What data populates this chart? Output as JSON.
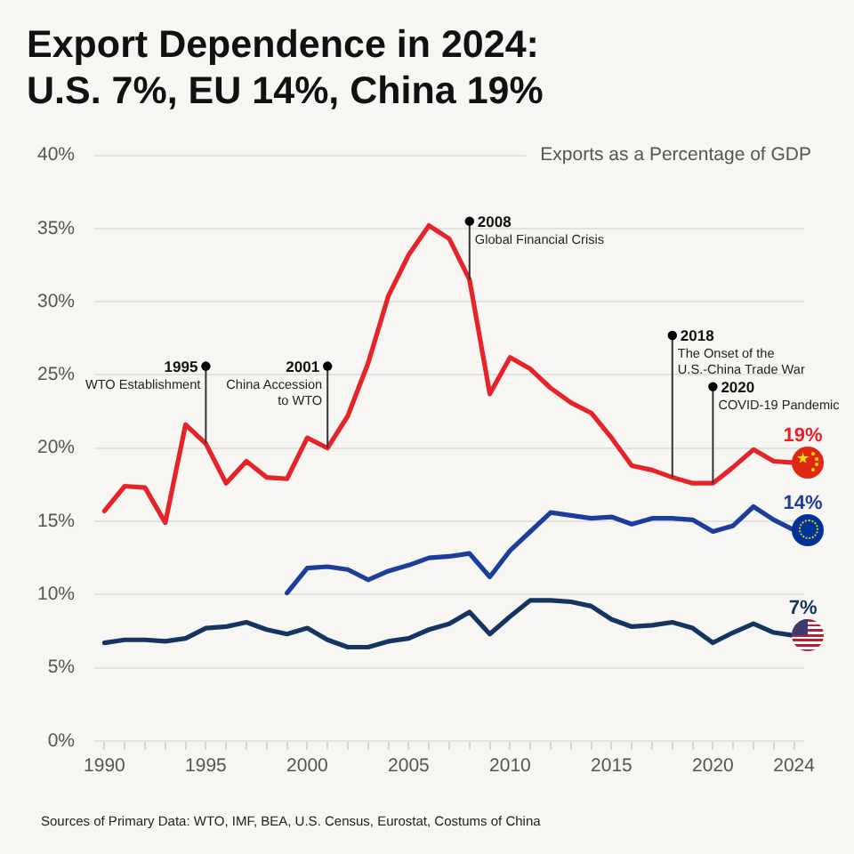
{
  "chart_data": {
    "type": "line",
    "title": "Export Dependence in 2024: U.S. 7%, EU 14%, China 19%",
    "ylabel": "Exports as a Percentage of GDP",
    "x": [
      1990,
      1991,
      1992,
      1993,
      1994,
      1995,
      1996,
      1997,
      1998,
      1999,
      2000,
      2001,
      2002,
      2003,
      2004,
      2005,
      2006,
      2007,
      2008,
      2009,
      2010,
      2011,
      2012,
      2013,
      2014,
      2015,
      2016,
      2017,
      2018,
      2019,
      2020,
      2021,
      2022,
      2023,
      2024
    ],
    "series": [
      {
        "color": "#e52329",
        "values": [
          15.7,
          17.4,
          17.3,
          14.9,
          21.6,
          20.3,
          17.6,
          19.1,
          18.0,
          17.9,
          20.7,
          20.0,
          22.2,
          25.8,
          30.4,
          33.2,
          35.2,
          34.3,
          31.5,
          23.7,
          26.2,
          25.4,
          24.1,
          23.1,
          22.4,
          20.7,
          18.8,
          18.5,
          18.0,
          17.6,
          17.6,
          18.7,
          19.9,
          19.1,
          19.0
        ],
        "value_labels": [
          null,
          null,
          null,
          null,
          null,
          null,
          null,
          null,
          null,
          null,
          null,
          null,
          null,
          null,
          null,
          null,
          null,
          null,
          null,
          null,
          null,
          null,
          null,
          null,
          null,
          null,
          null,
          null,
          null,
          null,
          null,
          null,
          null,
          null,
          "19%"
        ]
      },
      {
        "color": "#1c3d9c",
        "values": [
          null,
          null,
          null,
          null,
          null,
          null,
          null,
          null,
          null,
          10.1,
          11.8,
          11.9,
          11.7,
          11.0,
          11.6,
          12.0,
          12.5,
          12.6,
          12.8,
          11.2,
          13.0,
          14.3,
          15.6,
          15.4,
          15.2,
          15.3,
          14.8,
          15.2,
          15.2,
          15.1,
          14.3,
          14.7,
          16.0,
          15.1,
          14.4
        ],
        "value_labels": [
          null,
          null,
          null,
          null,
          null,
          null,
          null,
          null,
          null,
          null,
          null,
          null,
          null,
          null,
          null,
          null,
          null,
          null,
          null,
          null,
          null,
          null,
          null,
          null,
          null,
          null,
          null,
          null,
          null,
          null,
          null,
          null,
          null,
          null,
          "14%"
        ]
      },
      {
        "color": "#143462",
        "values": [
          6.7,
          6.9,
          6.9,
          6.8,
          7.0,
          7.7,
          7.8,
          8.1,
          7.6,
          7.3,
          7.7,
          6.9,
          6.4,
          6.4,
          6.8,
          7.0,
          7.6,
          8.0,
          8.8,
          7.3,
          8.5,
          9.6,
          9.6,
          9.5,
          9.2,
          8.3,
          7.8,
          7.9,
          8.1,
          7.7,
          6.7,
          7.4,
          8.0,
          7.4,
          7.2
        ],
        "value_labels": [
          null,
          null,
          null,
          null,
          null,
          null,
          null,
          null,
          null,
          null,
          null,
          null,
          null,
          null,
          null,
          null,
          null,
          null,
          null,
          null,
          null,
          null,
          null,
          null,
          null,
          null,
          null,
          null,
          null,
          null,
          null,
          null,
          null,
          null,
          "7%"
        ]
      }
    ],
    "xlim": [
      1989.5,
      2024.5
    ],
    "xticks": [
      1990,
      {
        "value": 1991,
        "label": null
      },
      {
        "value": 1992,
        "label": null
      },
      {
        "value": 1993,
        "label": null
      },
      {
        "value": 1994,
        "label": null
      },
      1995,
      {
        "value": 1996,
        "label": null
      },
      {
        "value": 1997,
        "label": null
      },
      {
        "value": 1998,
        "label": null
      },
      {
        "value": 1999,
        "label": null
      },
      2000,
      {
        "value": 2001,
        "label": null
      },
      {
        "value": 2002,
        "label": null
      },
      {
        "value": 2003,
        "label": null
      },
      {
        "value": 2004,
        "label": null
      },
      2005,
      {
        "value": 2006,
        "label": null
      },
      {
        "value": 2007,
        "label": null
      },
      {
        "value": 2008,
        "label": null
      },
      {
        "value": 2009,
        "label": null
      },
      2010,
      {
        "value": 2011,
        "label": null
      },
      {
        "value": 2012,
        "label": null
      },
      {
        "value": 2013,
        "label": null
      },
      {
        "value": 2014,
        "label": null
      },
      2015,
      {
        "value": 2016,
        "label": null
      },
      {
        "value": 2017,
        "label": null
      },
      {
        "value": 2018,
        "label": null
      },
      {
        "value": 2019,
        "label": null
      },
      2020,
      {
        "value": 2021,
        "label": null
      },
      {
        "value": 2022,
        "label": null
      },
      {
        "value": 2023,
        "label": null
      },
      2024
    ],
    "ylim": [
      0,
      40
    ],
    "yticks": [
      {
        "value": 0,
        "label": "0%"
      },
      {
        "value": 5,
        "label": "5%"
      },
      {
        "value": 10,
        "label": "10%"
      },
      {
        "value": 15,
        "label": "15%"
      },
      {
        "value": 20,
        "label": "20%"
      },
      {
        "value": 25,
        "label": "25%"
      },
      {
        "value": 30,
        "label": "30%"
      },
      {
        "value": 35,
        "label": "35%"
      },
      {
        "value": 40,
        "label": "40%"
      }
    ],
    "grid": "y",
    "marker": "none",
    "line_style": "solid",
    "annotations": [
      {
        "text": "1995\nWTO Establishment",
        "x": 1995,
        "y": 25.6
      },
      {
        "text": "2001\nChina Accession\nto WTO",
        "x": 2001,
        "y": 25.6
      },
      {
        "text": "2008\nGlobal Financial Crisis",
        "x": 2008,
        "y": 35.5
      },
      {
        "text": "2018\nThe Onset of the\nU.S.-China Trade War",
        "x": 2018,
        "y": 27.7
      },
      {
        "text": "2020\nCOVID-19 Pandemic",
        "x": 2020,
        "y": 24.2
      },
      "Sources of Primary Data: WTO, IMF, BEA, U.S. Census, Eurostat, Costums of China"
    ]
  }
}
